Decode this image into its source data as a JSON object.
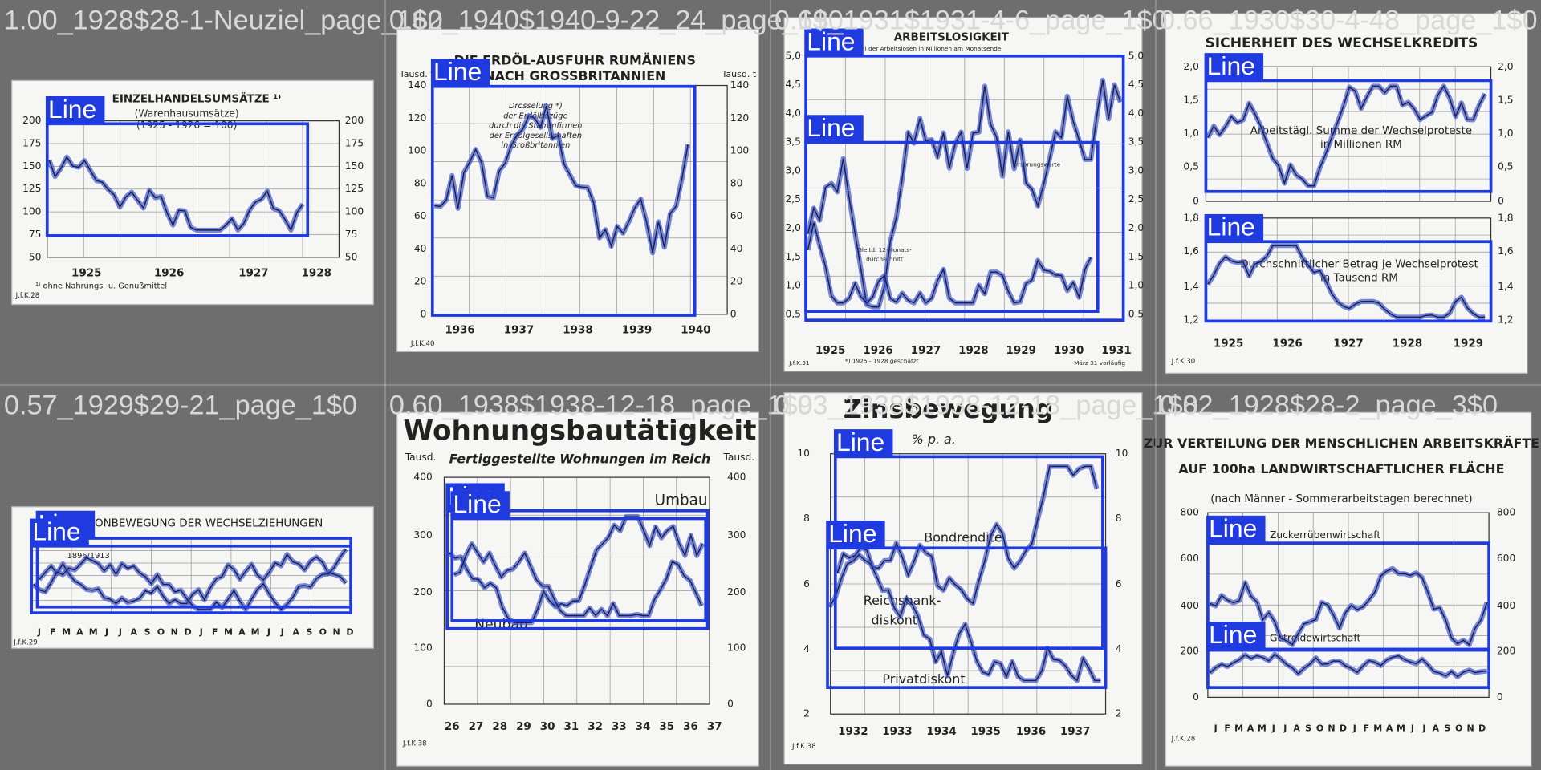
{
  "tiles": [
    {
      "caption": "1.00_1928$28-1-Neuziel_page_1$0",
      "titles": [
        "EINZELHANDELSUMSÄTZE ¹⁾",
        "(Warenhausumsätze)",
        "(1925 - 1926 = 100)"
      ],
      "y_left": [
        "200",
        "175",
        "150",
        "125",
        "100",
        "75",
        "50"
      ],
      "y_right": [
        "200",
        "175",
        "150",
        "125",
        "100",
        "75",
        "50"
      ],
      "x_labels": [
        "1925",
        "1926",
        "1927",
        "1928"
      ],
      "notes": [
        "¹⁾ ohne Nahrungs- u. Genußmittel",
        "J.f.K.28"
      ],
      "detections": [
        "Line"
      ]
    },
    {
      "caption": "0.62_1940$1940-9-22_24_page_1$0",
      "titles": [
        "DIE ERDÖL-AUSFUHR RUMÄNIENS",
        "NACH GROSSBRITANNIEN"
      ],
      "y_left": [
        "140",
        "120",
        "100",
        "80",
        "60",
        "40",
        "20",
        "0"
      ],
      "y_right": [
        "140",
        "120",
        "100",
        "80",
        "60",
        "40",
        "20",
        "0"
      ],
      "x_labels": [
        "1936",
        "1937",
        "1938",
        "1939",
        "1940"
      ],
      "notes": [
        "Tausd. t",
        "Tausd. t",
        "Drosselung *)",
        "der Erdölbezüge",
        "durch die Stammfirmen",
        "der Erdölgesellschaften",
        "in Großbritannien",
        "J.f.K.40"
      ],
      "detections": [
        "Line"
      ]
    },
    {
      "caption": "0.69_1931$1931-4-6_page_1$0",
      "titles": [
        "ARBEITSLOSIGKEIT",
        "Zahl *) der Arbeitslosen in Millionen am Monatsende"
      ],
      "y_left": [
        "5,0",
        "4,5",
        "4,0",
        "3,5",
        "3,0",
        "2,5",
        "2,0",
        "1,5",
        "1,0",
        "0,5"
      ],
      "y_right": [
        "5,0",
        "4,5",
        "4,0",
        "3,5",
        "3,0",
        "2,5",
        "2,0",
        "1,5",
        "1,0",
        "0,5"
      ],
      "x_labels": [
        "1925",
        "1926",
        "1927",
        "1928",
        "1929",
        "1930",
        "1931"
      ],
      "notes": [
        "Gleitd. 12-Monats-",
        "durchschnitt",
        "Ursprungswerte",
        "*) 1925 - 1928 geschätzt",
        "März 31 vorläufig",
        "J.f.K.31"
      ],
      "detections": [
        "Line",
        "Line"
      ]
    },
    {
      "caption": "0.66_1930$30-4-48_page_1$0",
      "titles": [
        "SICHERHEIT DES WECHSELKREDITS"
      ],
      "y_left": [
        "2,0",
        "1,5",
        "1,0",
        "0,5",
        "0",
        "1,8",
        "1,6",
        "1,4",
        "1,2"
      ],
      "y_right": [
        "2,0",
        "1,5",
        "1,0",
        "0,5",
        "0",
        "1,8",
        "1,6",
        "1,4",
        "1,2"
      ],
      "x_labels": [
        "1925",
        "1926",
        "1927",
        "1928",
        "1929"
      ],
      "notes": [
        "Arbeitstägl. Summe der Wechselproteste",
        "in Millionen RM",
        "Durchschnittlicher Betrag je Wechselprotest",
        "in Tausend RM",
        "J.f.K.30"
      ],
      "detections": [
        "Line",
        "Line"
      ]
    },
    {
      "caption": "0.57_1929$29-21_page_1$0",
      "titles": [
        "SAISONBEWEGUNG DER WECHSELZIEHUNGEN"
      ],
      "y_left": [],
      "y_right": [],
      "x_labels": [
        "J",
        "F",
        "M",
        "A",
        "M",
        "J",
        "J",
        "A",
        "S",
        "O",
        "N",
        "D",
        "J",
        "F",
        "M",
        "A",
        "M",
        "J",
        "J",
        "A",
        "S",
        "O",
        "N",
        "D"
      ],
      "notes": [
        "1896/1913",
        "J.f.K.29"
      ],
      "detections": [
        "Line",
        "Line"
      ]
    },
    {
      "caption": "0.60_1938$1938-12-18_page_1$0",
      "titles": [
        "Wohnungsbautätigkeit",
        "Fertiggestellte Wohnungen im Reich"
      ],
      "y_left": [
        "400",
        "300",
        "200",
        "100",
        "0"
      ],
      "y_right": [
        "400",
        "300",
        "200",
        "100",
        "0"
      ],
      "x_labels": [
        "26",
        "27",
        "28",
        "29",
        "30",
        "31",
        "32",
        "33",
        "34",
        "35",
        "36",
        "37"
      ],
      "notes": [
        "Tausd.",
        "Tausd.",
        "Umbau",
        "Neubau",
        "J.f.K.38"
      ],
      "detections": [
        "Line",
        "Line"
      ]
    },
    {
      "caption": "0.93_1938$1938-12-18_page_1$0",
      "titles": [
        "Zinsbewegung",
        "% p. a."
      ],
      "y_left": [
        "10",
        "8",
        "6",
        "4",
        "2"
      ],
      "y_right": [
        "10",
        "8",
        "6",
        "4",
        "2"
      ],
      "x_labels": [
        "1932",
        "1933",
        "1934",
        "1935",
        "1936",
        "1937"
      ],
      "notes": [
        "Bondrendite",
        "Reichsbank-",
        "diskont",
        "Privatdiskont",
        "J.f.K.38"
      ],
      "detections": [
        "Line",
        "Line"
      ]
    },
    {
      "caption": "0.82_1928$28-2_page_3$0",
      "titles": [
        "ZUR VERTEILUNG DER MENSCHLICHEN ARBEITSKRÄFTE",
        "AUF 100ha LANDWIRTSCHAFTLICHER FLÄCHE",
        "(nach Männer - Sommerarbeitstagen berechnet)"
      ],
      "y_left": [
        "800",
        "600",
        "400",
        "200",
        "0"
      ],
      "y_right": [
        "800",
        "600",
        "400",
        "200",
        "0"
      ],
      "x_labels": [
        "J",
        "F",
        "M",
        "A",
        "M",
        "J",
        "J",
        "A",
        "S",
        "O",
        "N",
        "D",
        "J",
        "F",
        "M",
        "A",
        "M",
        "J",
        "J",
        "A",
        "S",
        "O",
        "N",
        "D"
      ],
      "notes": [
        "Zuckerrübenwirtschaft",
        "Getreidewirtschaft",
        "J.f.K.28"
      ],
      "detections": [
        "Line",
        "Line"
      ]
    }
  ]
}
